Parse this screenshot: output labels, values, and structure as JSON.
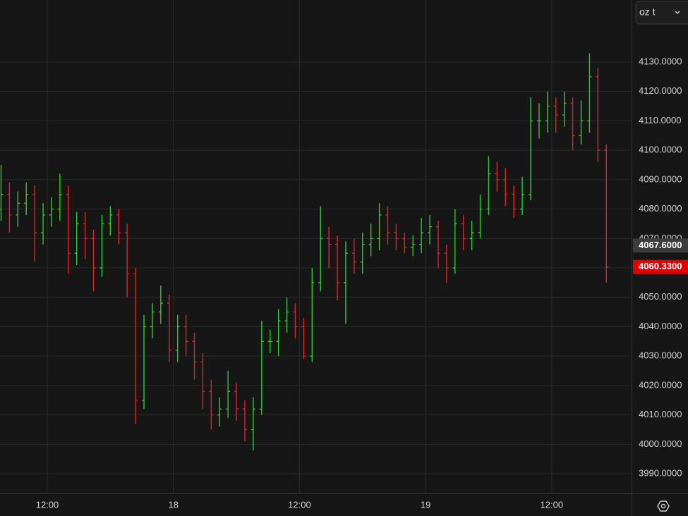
{
  "unit_selector": "oz t",
  "chart_data": {
    "type": "ohlc",
    "up_color": "#2ecc2e",
    "down_color": "#e02424",
    "grid": true,
    "x": [
      7.6,
      8.4,
      9.2,
      10,
      10.8,
      11.6,
      12.4,
      13.2,
      14,
      14.8,
      15.6,
      16.4,
      17.2,
      18,
      18.8,
      19.6,
      20.4,
      21.2,
      22,
      22.8,
      23.6,
      24.4,
      25.2,
      26,
      26.8,
      27.6,
      28.4,
      29.2,
      30,
      30.8,
      31.6,
      32.4,
      33.2,
      34,
      34.8,
      35.6,
      36.4,
      37.2,
      38,
      38.8,
      39.6,
      40.4,
      41.2,
      42,
      42.8,
      43.6,
      44.4,
      45.2,
      46,
      46.8,
      47.6,
      48.4,
      49.2,
      50,
      50.8,
      51.6,
      52.4,
      53.2,
      54,
      54.8,
      55.6,
      56.4,
      57.2,
      58,
      58.8,
      59.6,
      60.4,
      61.2,
      62,
      62.8,
      63.6,
      64.4,
      65.2
    ],
    "open": [
      4080,
      4085,
      4078,
      4082,
      4085,
      4072,
      4078,
      4080,
      4085,
      4065,
      4075,
      4070,
      4060,
      4075,
      4078,
      4072,
      4058,
      4015,
      4040,
      4045,
      4048,
      4032,
      4040,
      4035,
      4028,
      4018,
      4010,
      4012,
      4018,
      4012,
      4005,
      4012,
      4035,
      4035,
      4042,
      4045,
      4040,
      4030,
      4055,
      4070,
      4068,
      4055,
      4065,
      4062,
      4068,
      4070,
      4078,
      4072,
      4070,
      4067,
      4068,
      4072,
      4074,
      4065,
      4060,
      4075,
      4070,
      4072,
      4080,
      4092,
      4090,
      4085,
      4080,
      4085,
      4110,
      4110,
      4115,
      4112,
      4116,
      4105,
      4110,
      4125,
      4100
    ],
    "high": [
      4095,
      4089,
      4086,
      4089,
      4088,
      4082,
      4084,
      4092,
      4088,
      4079,
      4079,
      4073,
      4078,
      4081,
      4080,
      4075,
      4060,
      4044,
      4048,
      4054,
      4051,
      4044,
      4044,
      4038,
      4031,
      4022,
      4016,
      4025,
      4021,
      4015,
      4016,
      4042,
      4039,
      4046,
      4050,
      4048,
      4043,
      4060,
      4081,
      4074,
      4071,
      4069,
      4070,
      4072,
      4075,
      4082,
      4081,
      4075,
      4072,
      4071,
      4077,
      4078,
      4076,
      4068,
      4080,
      4078,
      4076,
      4085,
      4098,
      4096,
      4094,
      4088,
      4091,
      4118,
      4116,
      4120,
      4118,
      4120,
      4118,
      4117,
      4133,
      4128,
      4102
    ],
    "low": [
      4076,
      4072,
      4074,
      4078,
      4062,
      4068,
      4074,
      4076,
      4058,
      4061,
      4063,
      4052,
      4057,
      4071,
      4068,
      4050,
      4007,
      4012,
      4036,
      4041,
      4028,
      4028,
      4030,
      4022,
      4012,
      4005,
      4006,
      4009,
      4008,
      4001,
      3998,
      4010,
      4031,
      4030,
      4038,
      4036,
      4029,
      4028,
      4052,
      4060,
      4049,
      4041,
      4058,
      4058,
      4064,
      4066,
      4068,
      4066,
      4065,
      4064,
      4065,
      4068,
      4060,
      4055,
      4058,
      4066,
      4066,
      4070,
      4078,
      4086,
      4081,
      4077,
      4078,
      4083,
      4104,
      4106,
      4106,
      4108,
      4100,
      4102,
      4106,
      4096,
      4055
    ],
    "close": [
      4085,
      4078,
      4082,
      4085,
      4072,
      4078,
      4080,
      4085,
      4065,
      4075,
      4070,
      4060,
      4075,
      4078,
      4072,
      4058,
      4015,
      4040,
      4045,
      4048,
      4032,
      4040,
      4035,
      4028,
      4018,
      4010,
      4012,
      4018,
      4012,
      4005,
      4012,
      4035,
      4035,
      4042,
      4045,
      4040,
      4030,
      4055,
      4070,
      4068,
      4055,
      4065,
      4062,
      4068,
      4070,
      4078,
      4072,
      4070,
      4067,
      4068,
      4072,
      4074,
      4065,
      4060,
      4075,
      4070,
      4072,
      4080,
      4092,
      4090,
      4085,
      4080,
      4085,
      4110,
      4110,
      4115,
      4112,
      4116,
      4105,
      4110,
      4125,
      4100,
      4060.33
    ],
    "xlim": [
      7.5,
      67.6
    ],
    "xticks": [
      {
        "value": 12,
        "label": "12:00"
      },
      {
        "value": 24,
        "label": "18"
      },
      {
        "value": 36,
        "label": "12:00"
      },
      {
        "value": 48,
        "label": "19"
      },
      {
        "value": 60,
        "label": "12:00"
      }
    ],
    "ylim": [
      3983.3,
      4151.1
    ],
    "yticks": [
      {
        "value": 3990,
        "label": "3990.0000"
      },
      {
        "value": 4000,
        "label": "4000.0000"
      },
      {
        "value": 4010,
        "label": "4010.0000"
      },
      {
        "value": 4020,
        "label": "4020.0000"
      },
      {
        "value": 4030,
        "label": "4030.0000"
      },
      {
        "value": 4040,
        "label": "4040.0000"
      },
      {
        "value": 4050,
        "label": "4050.0000"
      },
      {
        "value": 4060,
        "label": "4060.0000"
      },
      {
        "value": 4070,
        "label": "4070.0000"
      },
      {
        "value": 4080,
        "label": "4080.0000"
      },
      {
        "value": 4090,
        "label": "4090.0000"
      },
      {
        "value": 4100,
        "label": "4100.0000"
      },
      {
        "value": 4110,
        "label": "4110.0000"
      },
      {
        "value": 4120,
        "label": "4120.0000"
      },
      {
        "value": 4130,
        "label": "4130.0000"
      }
    ],
    "price_markers": [
      {
        "value": 4067.6,
        "label": "4067.6000",
        "color": "#3c3c3c"
      },
      {
        "value": 4060.33,
        "label": "4060.3300",
        "color": "#e00000"
      }
    ]
  }
}
